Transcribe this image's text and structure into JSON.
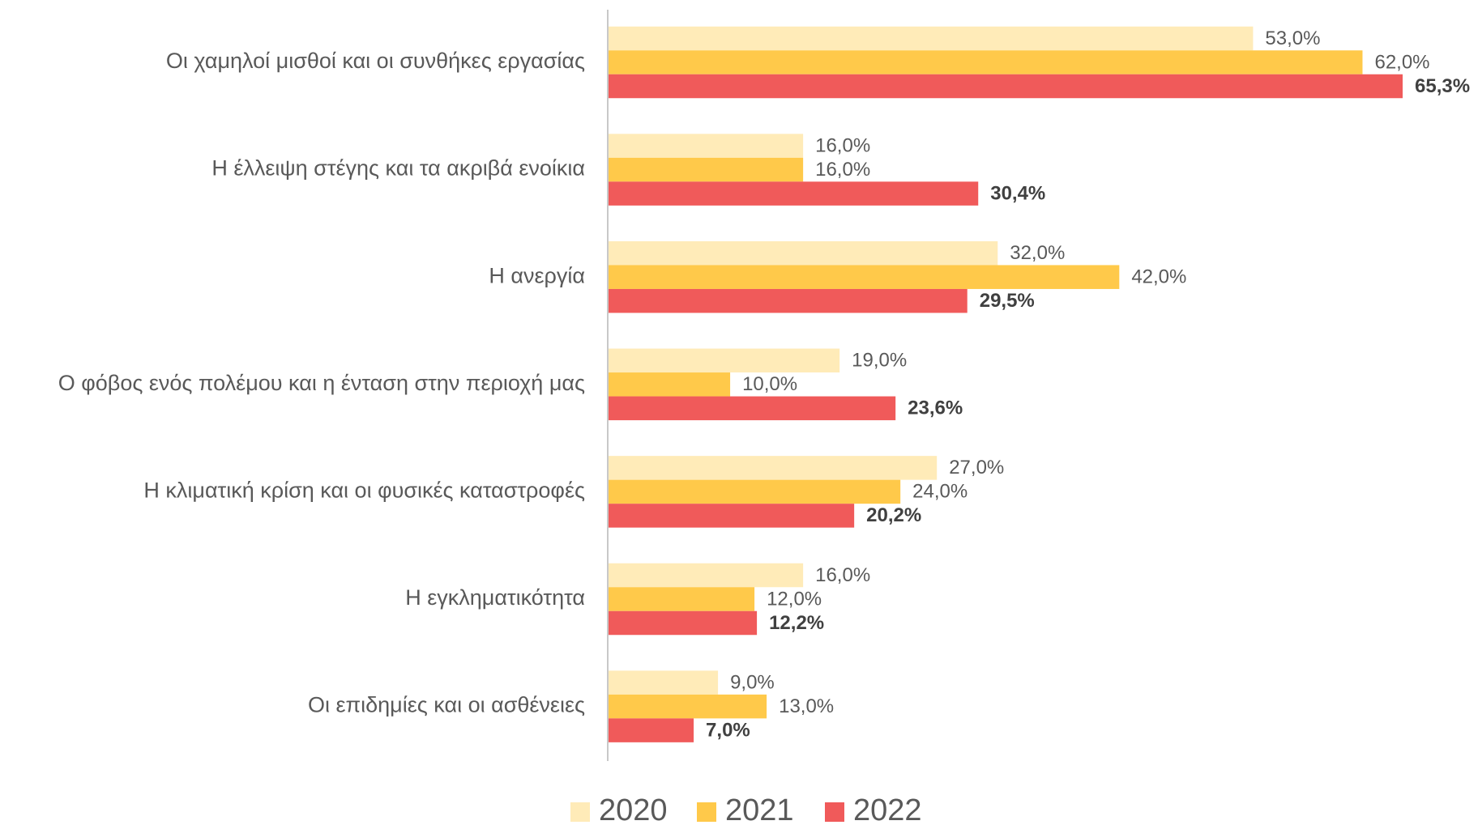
{
  "chart_data": {
    "type": "bar",
    "orientation": "horizontal",
    "categories": [
      "Οι χαμηλοί μισθοί και οι συνθήκες εργασίας",
      "Η έλλειψη στέγης και τα ακριβά ενοίκια",
      "Η ανεργία",
      "Ο φόβος ενός πολέμου και η ένταση στην περιοχή μας",
      "Η κλιματική κρίση και οι φυσικές καταστροφές",
      "Η εγκληματικότητα",
      "Οι επιδημίες και οι ασθένειες"
    ],
    "series": [
      {
        "name": "2020",
        "color": "#FFEBB8",
        "values": [
          53,
          16,
          32,
          19,
          27,
          16,
          9
        ],
        "value_labels": [
          "53,0%",
          "16,0%",
          "32,0%",
          "19,0%",
          "27,0%",
          "16,0%",
          "9,0%"
        ]
      },
      {
        "name": "2021",
        "color": "#FFC94A",
        "values": [
          62,
          16,
          42,
          10,
          24,
          12,
          13
        ],
        "value_labels": [
          "62,0%",
          "16,0%",
          "42,0%",
          "10,0%",
          "24,0%",
          "12,0%",
          "13,0%"
        ]
      },
      {
        "name": "2022",
        "color": "#F05A5A",
        "values": [
          65.3,
          30.4,
          29.5,
          23.6,
          20.2,
          12.2,
          7
        ],
        "value_labels": [
          "65,3%",
          "30,4%",
          "29,5%",
          "23,6%",
          "20,2%",
          "12,2%",
          "7,0%"
        ]
      }
    ],
    "legend": "bottom"
  }
}
